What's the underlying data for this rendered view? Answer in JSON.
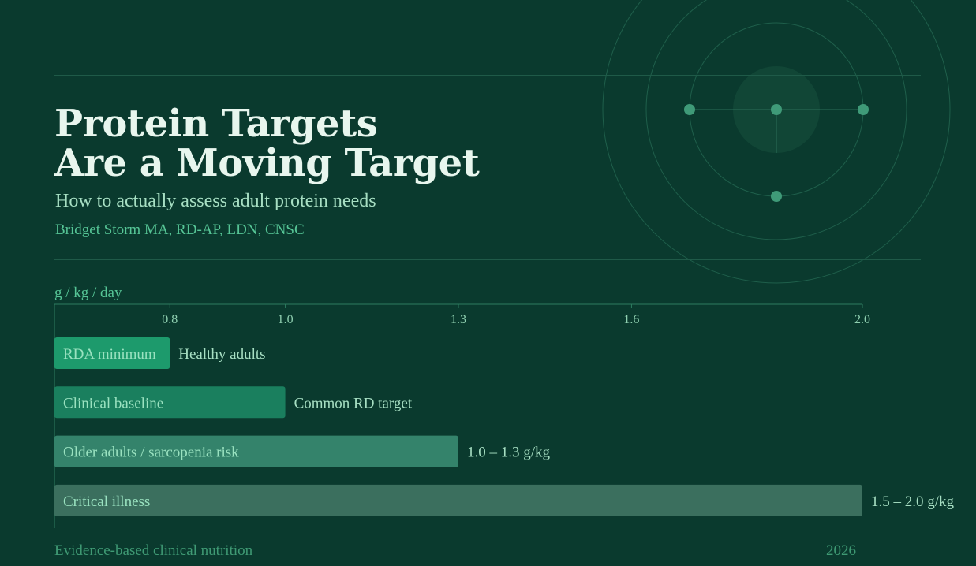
{
  "header": {
    "title_line1": "Protein Targets",
    "title_line2": "Are a Moving Target",
    "subtitle": "How to actually assess adult protein needs",
    "author": "Bridget Storm MA, RD-AP, LDN, CNSC"
  },
  "footer": {
    "left": "Evidence-based clinical nutrition",
    "right": "2026"
  },
  "colors": {
    "background": "#0a3a2e",
    "accent": "#56c596",
    "bar_1": "#1d9a6c",
    "bar_2": "#1a7f5e",
    "bar_3": "#34836b",
    "bar_4": "#3b6f5e"
  },
  "chart_data": {
    "type": "bar",
    "orientation": "horizontal",
    "ylabel": "g / kg / day",
    "xlim": [
      0.6,
      2.0
    ],
    "x_ticks": [
      0.8,
      1.0,
      1.3,
      1.6,
      2.0
    ],
    "x_tick_labels": [
      "0.8",
      "1.0",
      "1.3",
      "1.6",
      "2.0"
    ],
    "bars": [
      {
        "category": "RDA minimum",
        "value": 0.8,
        "annotation": "Healthy adults"
      },
      {
        "category": "Clinical baseline",
        "value": 1.0,
        "annotation": "Common RD target"
      },
      {
        "category": "Older adults / sarcopenia risk",
        "value": 1.3,
        "annotation": "1.0 – 1.3 g/kg"
      },
      {
        "category": "Critical illness",
        "value": 2.0,
        "annotation": "1.5 – 2.0 g/kg"
      }
    ],
    "grid": false
  }
}
